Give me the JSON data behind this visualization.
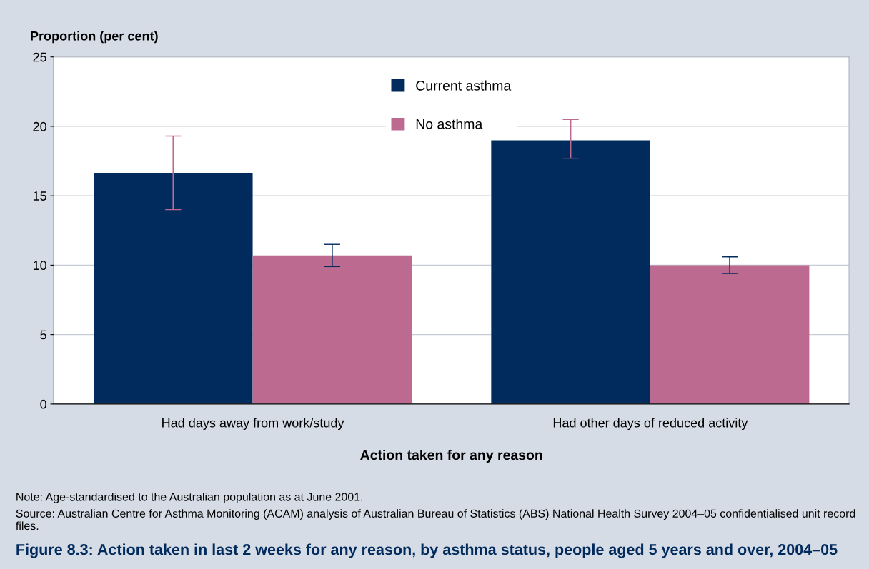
{
  "chart_data": {
    "type": "bar",
    "title": "Figure 8.3: Action taken in last 2 weeks for any reason, by asthma status, people aged 5 years and over, 2004–05",
    "xlabel": "Action taken for any reason",
    "ylabel": "Proportion (per cent)",
    "categories": [
      "Had days away from work/study",
      "Had other days of reduced activity"
    ],
    "series": [
      {
        "name": "Current asthma",
        "color": "#002b5c",
        "values": [
          16.6,
          19.0
        ],
        "errors": [
          [
            14.0,
            19.3
          ],
          [
            17.7,
            20.5
          ]
        ]
      },
      {
        "name": "No asthma",
        "color": "#bc6a90",
        "values": [
          10.7,
          10.0
        ],
        "errors": [
          [
            9.9,
            11.5
          ],
          [
            9.4,
            10.6
          ]
        ]
      }
    ],
    "ylim": [
      0,
      25
    ],
    "yticks": [
      0,
      5,
      10,
      15,
      20,
      25
    ],
    "grid": "y",
    "legend": "top",
    "annotations": [
      "Note: Age-standardised to the Australian population as at June 2001.",
      "Source: Australian Centre for Asthma Monitoring (ACAM) analysis of Australian Bureau of Statistics (ABS) National Health Survey 2004–05 confidentialised unit record files."
    ]
  }
}
